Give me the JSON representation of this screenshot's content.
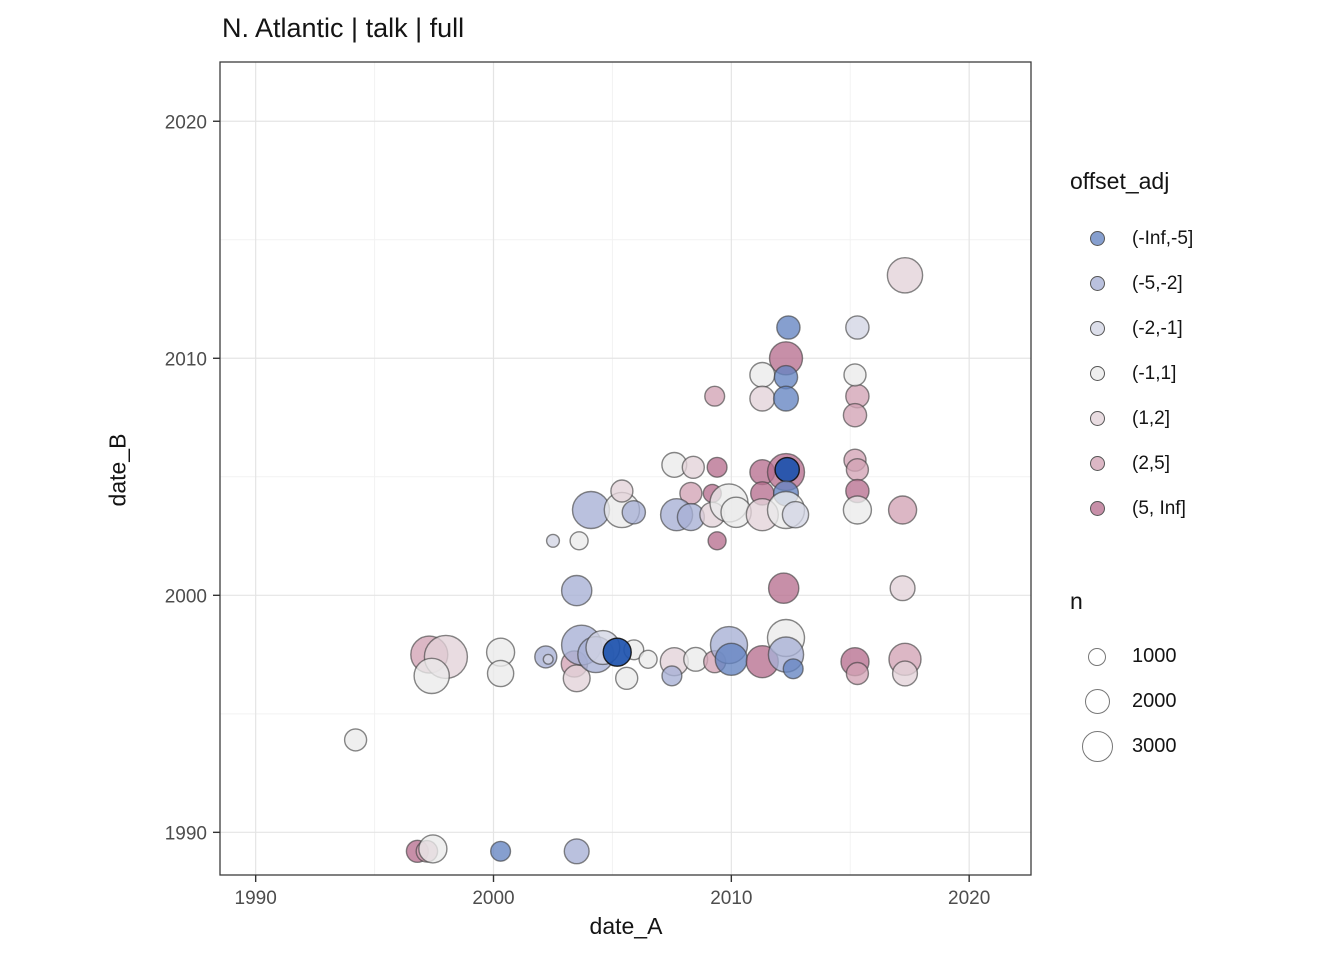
{
  "chart_data": {
    "type": "scatter",
    "title": "N. Atlantic | talk | full",
    "xlabel": "date_A",
    "ylabel": "date_B",
    "xlim": [
      1988.5,
      2022.6
    ],
    "ylim": [
      1988.2,
      2022.5
    ],
    "x_ticks": [
      1990,
      2000,
      2010,
      2020
    ],
    "y_ticks": [
      1990,
      2000,
      2010,
      2020
    ],
    "x_minor_ticks": [
      1995,
      2005,
      2015
    ],
    "y_minor_ticks": [
      1995,
      2005,
      2015
    ],
    "grid": true,
    "legend_position": "right",
    "color_legend": {
      "title": "offset_adj",
      "categories": [
        {
          "label": "(-Inf,-5]",
          "color": "#6484c2"
        },
        {
          "label": "(-5,-2]",
          "color": "#a7b0d5"
        },
        {
          "label": "(-2,-1]",
          "color": "#d2d5e4"
        },
        {
          "label": "(-1,1]",
          "color": "#ebebeb"
        },
        {
          "label": "(1,2]",
          "color": "#e3d2d9"
        },
        {
          "label": "(2,5]",
          "color": "#d2a3b5"
        },
        {
          "label": "(5, Inf]",
          "color": "#b7708f"
        }
      ],
      "strong_color": "#1d53ae"
    },
    "size_legend": {
      "title": "n",
      "values": [
        1000,
        2000,
        3000
      ]
    },
    "point_format": [
      "date_A",
      "date_B",
      "n",
      "category_index",
      "strong_flag"
    ],
    "points": [
      [
        1994.2,
        1993.9,
        1500,
        3
      ],
      [
        1996.8,
        1989.2,
        1500,
        6
      ],
      [
        1997.2,
        1989.2,
        1400,
        5
      ],
      [
        1997.45,
        1989.3,
        2400,
        3
      ],
      [
        2000.3,
        1989.2,
        1200,
        0
      ],
      [
        2003.5,
        1989.2,
        1900,
        1
      ],
      [
        1997.3,
        1997.5,
        4200,
        5
      ],
      [
        1998.0,
        1997.4,
        5700,
        4
      ],
      [
        1997.4,
        1996.6,
        3800,
        3
      ],
      [
        2000.3,
        1997.6,
        2400,
        3
      ],
      [
        2000.3,
        1996.7,
        2100,
        3
      ],
      [
        2002.2,
        1997.4,
        1500,
        1
      ],
      [
        2002.3,
        1997.3,
        300,
        2
      ],
      [
        2003.5,
        2000.2,
        2800,
        1
      ],
      [
        2003.4,
        1997.1,
        2100,
        5
      ],
      [
        2003.5,
        1996.5,
        2200,
        4
      ],
      [
        2003.7,
        1997.9,
        4900,
        1
      ],
      [
        2004.3,
        1997.5,
        4000,
        1
      ],
      [
        2004.6,
        1997.8,
        3500,
        2
      ],
      [
        2005.9,
        1997.7,
        1200,
        3
      ],
      [
        2005.6,
        1996.5,
        1500,
        3
      ],
      [
        2006.5,
        1997.3,
        1000,
        3
      ],
      [
        2005.2,
        1997.6,
        2400,
        0,
        1
      ],
      [
        2004.1,
        2003.6,
        4200,
        1
      ],
      [
        2005.4,
        2003.6,
        3800,
        3
      ],
      [
        2005.9,
        2003.5,
        1650,
        1
      ],
      [
        2005.4,
        2004.4,
        1500,
        4
      ],
      [
        2002.5,
        2002.3,
        500,
        2
      ],
      [
        2003.6,
        2002.3,
        1000,
        3
      ],
      [
        2007.6,
        2005.5,
        1900,
        3
      ],
      [
        2008.4,
        2005.4,
        1500,
        4
      ],
      [
        2009.4,
        2005.4,
        1200,
        6
      ],
      [
        2008.3,
        2004.3,
        1500,
        5
      ],
      [
        2009.2,
        2004.3,
        1000,
        6
      ],
      [
        2007.7,
        2003.4,
        3150,
        1
      ],
      [
        2008.3,
        2003.3,
        2250,
        1
      ],
      [
        2009.2,
        2003.4,
        1900,
        4
      ],
      [
        2009.9,
        2003.9,
        4450,
        3
      ],
      [
        2010.2,
        2003.5,
        2800,
        3
      ],
      [
        2009.4,
        2002.3,
        1000,
        6
      ],
      [
        2007.6,
        1997.2,
        2400,
        4
      ],
      [
        2007.5,
        1996.6,
        1200,
        1
      ],
      [
        2008.5,
        1997.3,
        1750,
        3
      ],
      [
        2009.3,
        1997.2,
        1500,
        5
      ],
      [
        2009.9,
        1997.9,
        4200,
        1
      ],
      [
        2010.0,
        1997.3,
        3150,
        0
      ],
      [
        2011.3,
        1997.2,
        3150,
        6
      ],
      [
        2012.3,
        1998.2,
        4200,
        3
      ],
      [
        2012.3,
        1997.5,
        3800,
        1
      ],
      [
        2012.6,
        1996.9,
        1200,
        0
      ],
      [
        2015.2,
        1997.2,
        2400,
        6
      ],
      [
        2015.3,
        1996.7,
        1500,
        5
      ],
      [
        2017.3,
        1997.3,
        3150,
        5
      ],
      [
        2017.3,
        1996.7,
        1900,
        4
      ],
      [
        2012.2,
        2000.3,
        2800,
        6
      ],
      [
        2017.2,
        2000.3,
        1900,
        4
      ],
      [
        2011.3,
        2005.2,
        1900,
        6
      ],
      [
        2012.3,
        2005.2,
        4200,
        6
      ],
      [
        2012.35,
        2005.3,
        1800,
        0,
        1
      ],
      [
        2011.3,
        2004.3,
        1650,
        6
      ],
      [
        2012.3,
        2004.3,
        1900,
        0
      ],
      [
        2011.3,
        2003.4,
        3150,
        4
      ],
      [
        2012.3,
        2003.6,
        4200,
        3
      ],
      [
        2012.7,
        2003.4,
        2100,
        2
      ],
      [
        2015.3,
        2008.4,
        1650,
        5
      ],
      [
        2015.2,
        2007.6,
        1650,
        5
      ],
      [
        2015.2,
        2005.7,
        1500,
        5
      ],
      [
        2015.3,
        2005.3,
        1500,
        5
      ],
      [
        2015.3,
        2004.4,
        1650,
        6
      ],
      [
        2015.3,
        2003.6,
        2400,
        3
      ],
      [
        2017.2,
        2003.6,
        2400,
        5
      ],
      [
        2017.3,
        2013.5,
        3800,
        4
      ],
      [
        2012.4,
        2011.3,
        1650,
        0
      ],
      [
        2015.3,
        2011.3,
        1650,
        2
      ],
      [
        2012.3,
        2010.0,
        3350,
        6
      ],
      [
        2011.3,
        2009.3,
        1900,
        3
      ],
      [
        2012.3,
        2009.2,
        1650,
        0
      ],
      [
        2011.3,
        2008.3,
        1900,
        4
      ],
      [
        2012.3,
        2008.3,
        1900,
        0
      ],
      [
        2009.3,
        2008.4,
        1200,
        5
      ],
      [
        2015.2,
        2009.3,
        1500,
        3
      ]
    ]
  }
}
